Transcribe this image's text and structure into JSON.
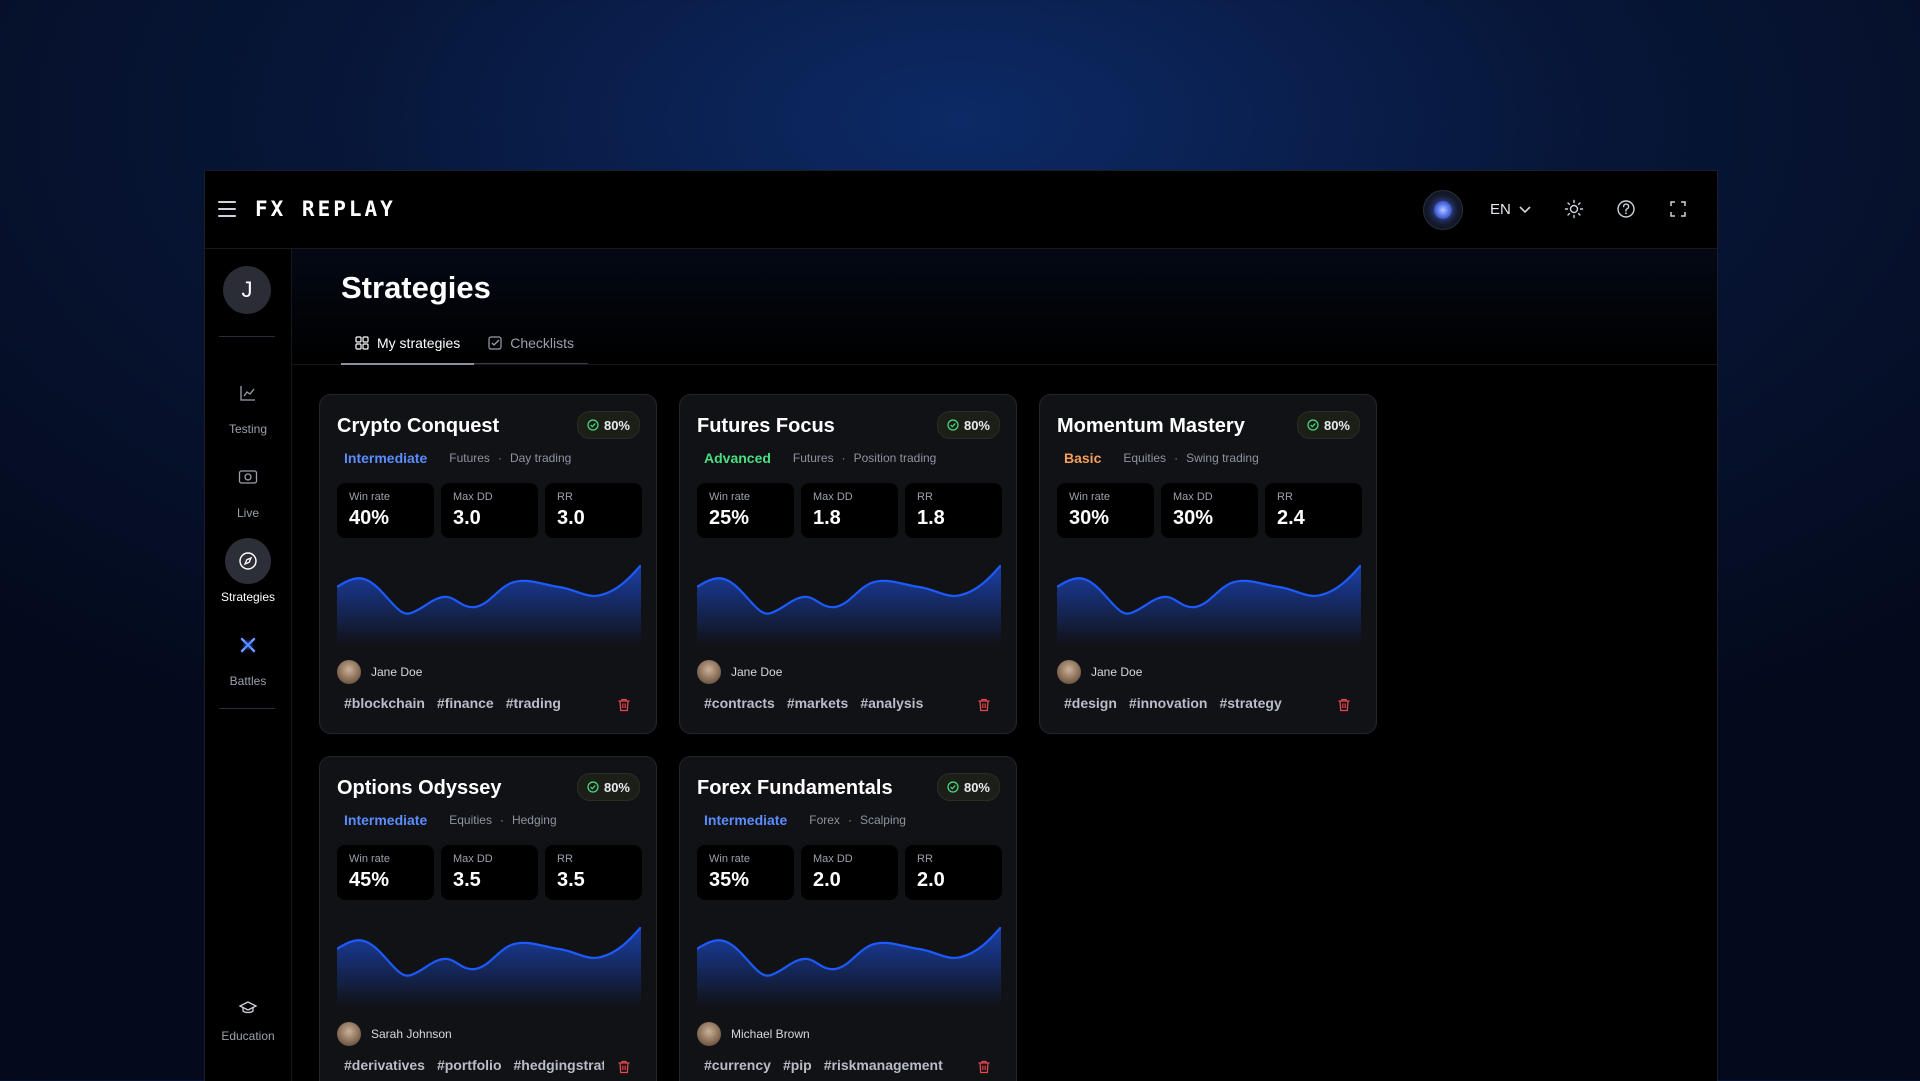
{
  "app": {
    "logo": "FX REPLAY",
    "language": "EN"
  },
  "user": {
    "initial": "J"
  },
  "sidebar": {
    "items": [
      {
        "id": "testing",
        "label": "Testing",
        "icon": "chart-line-icon",
        "active": false
      },
      {
        "id": "live",
        "label": "Live",
        "icon": "camera-icon",
        "active": false
      },
      {
        "id": "strategies",
        "label": "Strategies",
        "icon": "compass-icon",
        "active": true
      },
      {
        "id": "battles",
        "label": "Battles",
        "icon": "crossed-swords-icon",
        "active": false
      }
    ],
    "bottom": {
      "label": "Education",
      "icon": "graduation-cap-icon"
    }
  },
  "page": {
    "title": "Strategies",
    "tabs": [
      {
        "label": "My strategies",
        "icon": "grid-icon",
        "active": true
      },
      {
        "label": "Checklists",
        "icon": "checkbox-icon",
        "active": false
      }
    ]
  },
  "colors": {
    "Intermediate": "#5b8cff",
    "Advanced": "#4ade80",
    "Basic": "#f59e5b",
    "sparkline": "#1d5bff",
    "trash": "#e5484d",
    "badge_check": "#4ade80"
  },
  "stat_labels": {
    "win": "Win rate",
    "dd": "Max DD",
    "rr": "RR"
  },
  "cards": [
    {
      "title": "Crypto Conquest",
      "badge": "80%",
      "level": "Intermediate",
      "market": "Futures",
      "style": "Day trading",
      "win_rate": "40%",
      "max_dd": "3.0",
      "rr": "3.0",
      "author": "Jane Doe",
      "tags": [
        "#blockchain",
        "#finance",
        "#trading"
      ]
    },
    {
      "title": "Futures Focus",
      "badge": "80%",
      "level": "Advanced",
      "market": "Futures",
      "style": "Position trading",
      "win_rate": "25%",
      "max_dd": "1.8",
      "rr": "1.8",
      "author": "Jane Doe",
      "tags": [
        "#contracts",
        "#markets",
        "#analysis"
      ]
    },
    {
      "title": "Momentum Mastery",
      "badge": "80%",
      "level": "Basic",
      "market": "Equities",
      "style": "Swing trading",
      "win_rate": "30%",
      "max_dd": "30%",
      "rr": "2.4",
      "author": "Jane Doe",
      "tags": [
        "#design",
        "#innovation",
        "#strategy"
      ]
    },
    {
      "title": "Options Odyssey",
      "badge": "80%",
      "level": "Intermediate",
      "market": "Equities",
      "style": "Hedging",
      "win_rate": "45%",
      "max_dd": "3.5",
      "rr": "3.5",
      "author": "Sarah Johnson",
      "tags": [
        "#derivatives",
        "#portfolio",
        "#hedgingstrategies"
      ]
    },
    {
      "title": "Forex Fundamentals",
      "badge": "80%",
      "level": "Intermediate",
      "market": "Forex",
      "style": "Scalping",
      "win_rate": "35%",
      "max_dd": "2.0",
      "rr": "2.0",
      "author": "Michael Brown",
      "tags": [
        "#currency",
        "#pip",
        "#riskmanagement"
      ]
    }
  ]
}
